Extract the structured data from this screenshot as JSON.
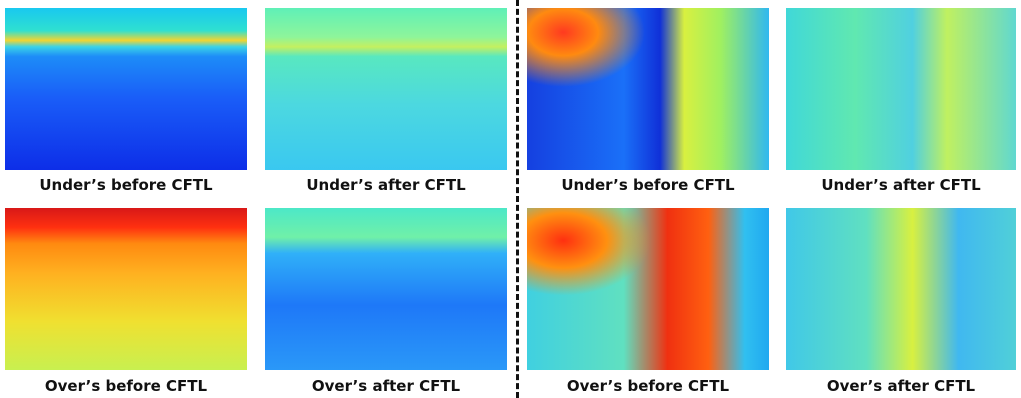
{
  "panels": [
    {
      "caption": "Under’s before CFTL"
    },
    {
      "caption": "Under’s after CFTL"
    },
    {
      "caption": "Under’s before CFTL"
    },
    {
      "caption": "Under’s after CFTL"
    },
    {
      "caption": "Over’s before CFTL"
    },
    {
      "caption": "Over’s after CFTL"
    },
    {
      "caption": "Over’s before CFTL"
    },
    {
      "caption": "Over’s after CFTL"
    }
  ]
}
